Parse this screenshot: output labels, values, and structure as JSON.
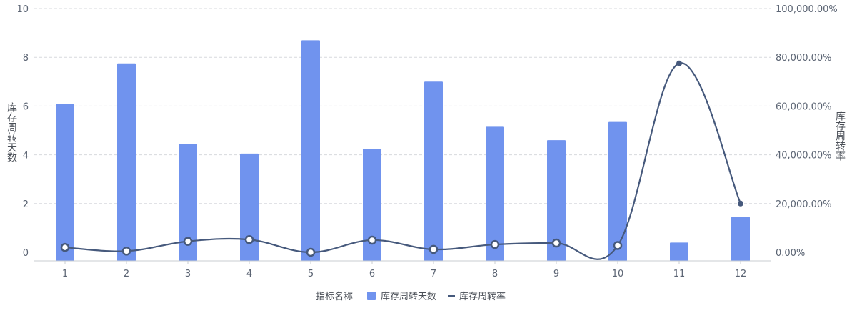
{
  "chart_data": {
    "type": "bar",
    "categories": [
      "1",
      "2",
      "3",
      "4",
      "5",
      "6",
      "7",
      "8",
      "9",
      "10",
      "11",
      "12"
    ],
    "series": [
      {
        "name": "库存周转天数",
        "type": "bar",
        "axis": "left",
        "values": [
          6.1,
          7.75,
          4.45,
          4.05,
          8.7,
          4.25,
          7.0,
          5.15,
          4.6,
          5.35,
          0.4,
          1.45
        ]
      },
      {
        "name": "库存周转率",
        "type": "line",
        "axis": "right",
        "values": [
          2000,
          500,
          4500,
          5200,
          0,
          5000,
          1200,
          3200,
          3800,
          2800,
          77500,
          20000
        ]
      }
    ],
    "y_left": {
      "label": "库存周转天数",
      "ylim": [
        0,
        10
      ],
      "ticks": [
        "0",
        "2",
        "4",
        "6",
        "8",
        "10"
      ]
    },
    "y_right": {
      "label": "库存周转率",
      "ylim": [
        0,
        100000
      ],
      "ticks": [
        "0.00%",
        "20,000.00%",
        "40,000.00%",
        "60,000.00%",
        "80,000.00%",
        "100,000.00%"
      ]
    },
    "legend": {
      "title": "指标名称",
      "position": "bottom-center"
    },
    "grid": true,
    "colors": {
      "bar": "#7093ee",
      "line": "#46597c",
      "grid": "#d7d9dd",
      "axis": "#c9ccd1"
    }
  }
}
